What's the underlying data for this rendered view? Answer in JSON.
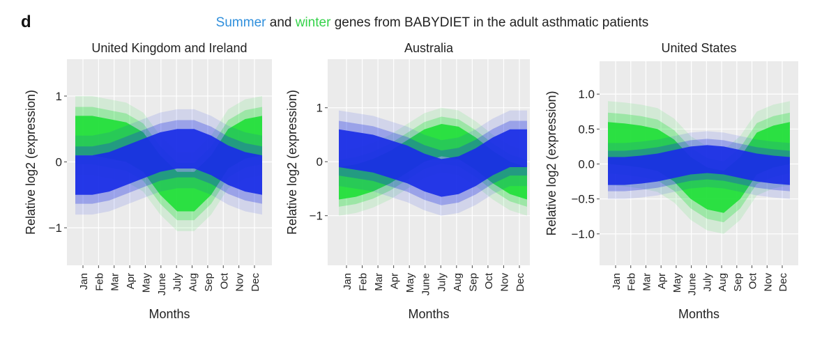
{
  "panel_letter": "d",
  "title": {
    "part1": "Summer",
    "part2": " and ",
    "part3": "winter",
    "part4": " genes from BABYDIET in the adult asthmatic patients"
  },
  "colors": {
    "summer": "#1a2ee6",
    "winter": "#22e03a",
    "summer_title": "#2f8fdc",
    "winter_title": "#35d24a",
    "panel_bg": "#ebebeb",
    "grid": "#ffffff"
  },
  "chart_data": [
    {
      "type": "area",
      "title": "United Kingdom and Ireland",
      "xlabel": "Months",
      "ylabel": "Relative log2 (expression)",
      "categories": [
        "Jan",
        "Feb",
        "Mar",
        "Apr",
        "May",
        "June",
        "July",
        "Aug",
        "Sep",
        "Oct",
        "Nov",
        "Dec"
      ],
      "yticks": [
        "1",
        "0",
        "−1"
      ],
      "ytick_values": [
        1,
        0,
        -1
      ],
      "ylim": [
        -1.57,
        1.56
      ],
      "grid": true,
      "series": [
        {
          "name": "winter",
          "center": [
            0.4,
            0.4,
            0.35,
            0.3,
            0.15,
            -0.2,
            -0.45,
            -0.45,
            -0.2,
            0.2,
            0.35,
            0.4
          ],
          "half_width": 0.3
        },
        {
          "name": "Summer",
          "center": [
            -0.2,
            -0.2,
            -0.15,
            -0.05,
            0.05,
            0.15,
            0.2,
            0.2,
            0.1,
            -0.05,
            -0.15,
            -0.2
          ],
          "half_width": 0.3
        }
      ]
    },
    {
      "type": "area",
      "title": "Australia",
      "xlabel": "Months",
      "ylabel": "Relative log2 (expression)",
      "categories": [
        "Jan",
        "Feb",
        "Mar",
        "Apr",
        "May",
        "June",
        "July",
        "Aug",
        "Sep",
        "Oct",
        "Nov",
        "Dec"
      ],
      "yticks": [
        "1",
        "0",
        "−1"
      ],
      "ytick_values": [
        1,
        0,
        -1
      ],
      "ylim": [
        -1.92,
        1.9
      ],
      "grid": true,
      "series": [
        {
          "name": "winter",
          "center": [
            -0.4,
            -0.35,
            -0.25,
            -0.1,
            0.1,
            0.3,
            0.4,
            0.35,
            0.15,
            -0.1,
            -0.3,
            -0.4
          ],
          "half_width": 0.3
        },
        {
          "name": "Summer",
          "center": [
            0.25,
            0.2,
            0.15,
            0.05,
            -0.05,
            -0.2,
            -0.3,
            -0.25,
            -0.1,
            0.1,
            0.25,
            0.25
          ],
          "half_width": 0.35
        }
      ]
    },
    {
      "type": "area",
      "title": "United States",
      "xlabel": "Months",
      "ylabel": "Relative log2 (expression)",
      "categories": [
        "Jan",
        "Feb",
        "Mar",
        "Apr",
        "May",
        "June",
        "July",
        "Aug",
        "Sep",
        "Oct",
        "Nov",
        "Dec"
      ],
      "yticks": [
        "1.0",
        "0.5",
        "0.0",
        "−0.5",
        "−1.0"
      ],
      "ytick_values": [
        1,
        0.5,
        0,
        -0.5,
        -1
      ],
      "ylim": [
        -1.45,
        1.47
      ],
      "grid": true,
      "series": [
        {
          "name": "winter",
          "center": [
            0.3,
            0.28,
            0.25,
            0.2,
            0.05,
            -0.2,
            -0.35,
            -0.4,
            -0.2,
            0.15,
            0.25,
            0.3
          ],
          "half_width": 0.3
        },
        {
          "name": "Summer",
          "center": [
            -0.1,
            -0.1,
            -0.08,
            -0.05,
            0.0,
            0.05,
            0.07,
            0.05,
            0.0,
            -0.05,
            -0.08,
            -0.1
          ],
          "half_width": 0.2
        }
      ]
    }
  ]
}
